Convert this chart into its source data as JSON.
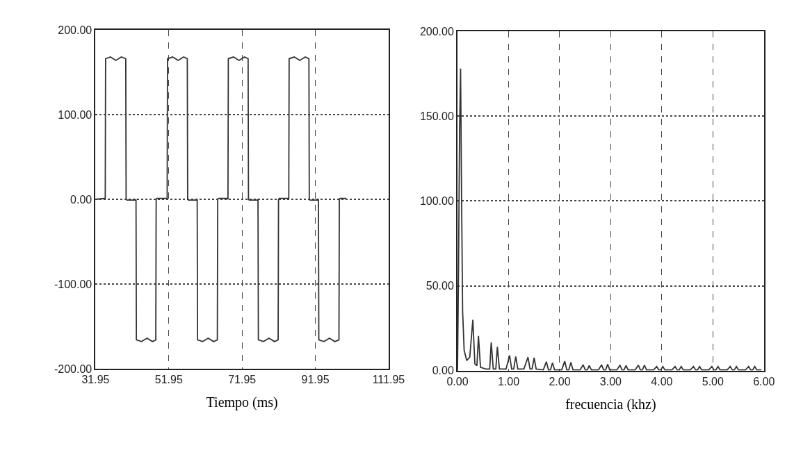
{
  "chart_data": [
    {
      "type": "line",
      "xlabel": "Tiempo (ms)",
      "xlim": [
        31.95,
        111.95
      ],
      "xticks": [
        31.95,
        51.95,
        71.95,
        91.95,
        111.95
      ],
      "ylim": [
        -200,
        200
      ],
      "yticks": [
        {
          "value": -200,
          "label": "-200.00"
        },
        {
          "value": -100,
          "label": "-100.00"
        },
        {
          "value": 0,
          "label": "0.00"
        },
        {
          "value": 100,
          "label": "100.00"
        },
        {
          "value": 200,
          "label": "200.00"
        }
      ],
      "grid": true,
      "legend": false,
      "marker": "none",
      "line_style": "solid",
      "series": [
        {
          "color": "#333333",
          "x": [
            31.95,
            34.3,
            34.6,
            34.7,
            36.0,
            37.5,
            39.0,
            40.2,
            40.3,
            40.5,
            42.8,
            43.0,
            43.1,
            44.5,
            46.0,
            47.5,
            48.4,
            48.5,
            48.7,
            51.3,
            51.5,
            51.6,
            53.0,
            54.5,
            56.0,
            57.0,
            57.1,
            57.3,
            59.5,
            59.7,
            59.8,
            61.2,
            62.7,
            64.2,
            65.2,
            65.3,
            65.5,
            67.9,
            68.1,
            68.2,
            69.6,
            71.1,
            72.6,
            73.6,
            73.7,
            73.9,
            76.1,
            76.3,
            76.4,
            77.8,
            79.3,
            80.8,
            81.8,
            81.9,
            82.1,
            84.5,
            84.7,
            84.8,
            86.2,
            87.7,
            89.2,
            90.2,
            90.3,
            90.5,
            92.6,
            92.8,
            92.9,
            94.3,
            95.8,
            97.3,
            98.4,
            98.5,
            98.7,
            100.4
          ],
          "values": [
            0,
            1,
            0,
            166,
            168,
            164,
            168,
            166,
            0,
            -1,
            -1,
            0,
            -166,
            -168,
            -164,
            -168,
            -166,
            0,
            1,
            1,
            0,
            166,
            168,
            164,
            168,
            166,
            0,
            -1,
            -1,
            0,
            -166,
            -168,
            -164,
            -168,
            -166,
            0,
            1,
            1,
            0,
            166,
            168,
            164,
            168,
            166,
            0,
            -1,
            -1,
            0,
            -166,
            -168,
            -164,
            -168,
            -166,
            0,
            1,
            1,
            0,
            166,
            168,
            164,
            168,
            166,
            0,
            -1,
            -1,
            0,
            -166,
            -168,
            -164,
            -168,
            -166,
            0,
            1,
            1
          ]
        }
      ]
    },
    {
      "type": "line",
      "xlabel": "frecuencia (khz)",
      "xlim": [
        0,
        6
      ],
      "xticks": [
        {
          "value": 0,
          "label": "0.00"
        },
        {
          "value": 1,
          "label": "1.00"
        },
        {
          "value": 2,
          "label": "2.00"
        },
        {
          "value": 3,
          "label": "3.00"
        },
        {
          "value": 4,
          "label": "4.00"
        },
        {
          "value": 5,
          "label": "5.00"
        },
        {
          "value": 6,
          "label": "6.00"
        }
      ],
      "ylim": [
        0,
        200
      ],
      "yticks": [
        {
          "value": 0,
          "label": "0.00"
        },
        {
          "value": 50,
          "label": "50.00"
        },
        {
          "value": 100,
          "label": "100.00"
        },
        {
          "value": 150,
          "label": "150.00"
        },
        {
          "value": 200,
          "label": "200.00"
        }
      ],
      "grid": true,
      "legend": false,
      "marker": "none",
      "line_style": "solid",
      "series": [
        {
          "color": "#333333",
          "x": [
            0,
            0.02,
            0.04,
            0.06,
            0.08,
            0.1,
            0.13,
            0.18,
            0.24,
            0.3,
            0.34,
            0.38,
            0.41,
            0.45,
            0.55,
            0.63,
            0.66,
            0.7,
            0.75,
            0.78,
            0.82,
            0.95,
            1.02,
            1.06,
            1.1,
            1.14,
            1.18,
            1.3,
            1.38,
            1.42,
            1.46,
            1.5,
            1.54,
            1.68,
            1.74,
            1.78,
            1.82,
            1.86,
            1.9,
            2.04,
            2.1,
            2.14,
            2.18,
            2.22,
            2.26,
            2.4,
            2.46,
            2.5,
            2.54,
            2.58,
            2.62,
            2.76,
            2.82,
            2.86,
            2.9,
            2.94,
            2.98,
            3.12,
            3.18,
            3.22,
            3.26,
            3.3,
            3.34,
            3.48,
            3.54,
            3.58,
            3.62,
            3.66,
            3.7,
            3.84,
            3.9,
            3.94,
            3.98,
            4.02,
            4.06,
            4.2,
            4.26,
            4.3,
            4.34,
            4.38,
            4.42,
            4.56,
            4.62,
            4.66,
            4.7,
            4.74,
            4.78,
            4.92,
            4.98,
            5.02,
            5.06,
            5.1,
            5.14,
            5.28,
            5.34,
            5.38,
            5.42,
            5.46,
            5.5,
            5.64,
            5.7,
            5.74,
            5.78,
            5.82,
            5.86,
            5.95
          ],
          "values": [
            0,
            60,
            140,
            178,
            100,
            35,
            12,
            6,
            8,
            30,
            4,
            3,
            20.5,
            2,
            1,
            1,
            16.7,
            1,
            1,
            14,
            1,
            1,
            9,
            1,
            1,
            8.4,
            1,
            1,
            8,
            1,
            1,
            7.6,
            1,
            0.5,
            5.3,
            0.5,
            0.5,
            4.6,
            0.5,
            0.5,
            5.6,
            0.5,
            0.5,
            5,
            0.5,
            0.5,
            3.5,
            0.5,
            0.5,
            3,
            0.5,
            0.5,
            3.5,
            0.5,
            0.5,
            3.8,
            0.5,
            0.5,
            3.3,
            0.5,
            0.5,
            3,
            0.5,
            0.5,
            3.3,
            0.5,
            0.5,
            3.3,
            0.5,
            0.5,
            2.5,
            0.5,
            0.5,
            2.5,
            0.5,
            0.5,
            2.5,
            0.5,
            0.5,
            2.5,
            0.5,
            0.5,
            2.5,
            0.5,
            0.5,
            2.5,
            0.5,
            0.5,
            2.5,
            0.5,
            0.5,
            2.5,
            0.5,
            0.5,
            2.5,
            0.5,
            0.5,
            2.5,
            0.5,
            0.5,
            2.5,
            0.5,
            0.5,
            2.5,
            0.5,
            0.5
          ]
        }
      ]
    }
  ]
}
